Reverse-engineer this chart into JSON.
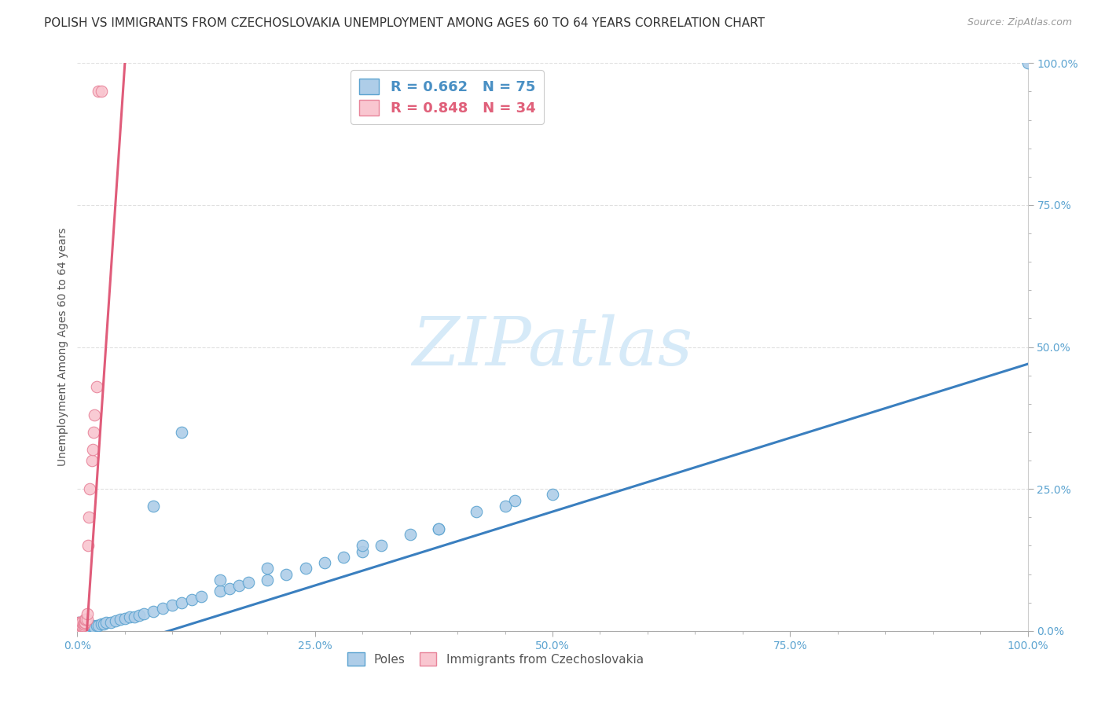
{
  "title": "POLISH VS IMMIGRANTS FROM CZECHOSLOVAKIA UNEMPLOYMENT AMONG AGES 60 TO 64 YEARS CORRELATION CHART",
  "source": "Source: ZipAtlas.com",
  "ylabel": "Unemployment Among Ages 60 to 64 years",
  "poles_label": "Poles",
  "czecho_label": "Immigrants from Czechoslovakia",
  "blue_dot_facecolor": "#aecde8",
  "blue_dot_edgecolor": "#5ba3d0",
  "pink_dot_facecolor": "#f9c6d0",
  "pink_dot_edgecolor": "#e8849a",
  "blue_line_color": "#3a7fbf",
  "pink_line_color": "#e05c7a",
  "axis_tick_color": "#5ba3d0",
  "ylabel_color": "#555555",
  "title_color": "#333333",
  "source_color": "#999999",
  "grid_color": "#e0e0e0",
  "background_color": "#ffffff",
  "watermark_color": "#d6eaf8",
  "legend_r_blue_color": "#4a90c4",
  "legend_r_pink_color": "#e0607a",
  "legend_n_blue_color": "#4a90c4",
  "legend_n_pink_color": "#e0607a",
  "legend_entry1": "R = 0.662   N = 75",
  "legend_entry2": "R = 0.848   N = 34",
  "xlim": [
    0.0,
    1.0
  ],
  "ylim": [
    0.0,
    1.0
  ],
  "blue_reg": [
    -0.05,
    0.52
  ],
  "pink_reg": [
    -0.25,
    25.0
  ],
  "poles_x": [
    0.001,
    0.001,
    0.001,
    0.001,
    0.001,
    0.001,
    0.001,
    0.001,
    0.002,
    0.002,
    0.002,
    0.002,
    0.003,
    0.003,
    0.003,
    0.004,
    0.004,
    0.005,
    0.005,
    0.006,
    0.006,
    0.007,
    0.008,
    0.009,
    0.01,
    0.01,
    0.011,
    0.012,
    0.013,
    0.015,
    0.016,
    0.018,
    0.02,
    0.022,
    0.025,
    0.028,
    0.03,
    0.035,
    0.04,
    0.045,
    0.05,
    0.055,
    0.06,
    0.065,
    0.07,
    0.08,
    0.09,
    0.1,
    0.11,
    0.12,
    0.13,
    0.15,
    0.16,
    0.17,
    0.18,
    0.2,
    0.22,
    0.24,
    0.26,
    0.28,
    0.3,
    0.32,
    0.35,
    0.38,
    0.42,
    0.46,
    0.5,
    0.45,
    0.38,
    0.3,
    0.2,
    0.15,
    0.11,
    0.08,
    1.0
  ],
  "poles_y": [
    0.005,
    0.005,
    0.007,
    0.007,
    0.008,
    0.01,
    0.012,
    0.015,
    0.005,
    0.007,
    0.01,
    0.012,
    0.005,
    0.008,
    0.01,
    0.005,
    0.008,
    0.005,
    0.008,
    0.005,
    0.01,
    0.005,
    0.007,
    0.005,
    0.007,
    0.01,
    0.005,
    0.008,
    0.005,
    0.008,
    0.01,
    0.007,
    0.01,
    0.01,
    0.012,
    0.012,
    0.015,
    0.015,
    0.018,
    0.02,
    0.022,
    0.025,
    0.025,
    0.028,
    0.03,
    0.035,
    0.04,
    0.045,
    0.05,
    0.055,
    0.06,
    0.07,
    0.075,
    0.08,
    0.085,
    0.09,
    0.1,
    0.11,
    0.12,
    0.13,
    0.14,
    0.15,
    0.17,
    0.18,
    0.21,
    0.23,
    0.24,
    0.22,
    0.18,
    0.15,
    0.11,
    0.09,
    0.35,
    0.22,
    1.0
  ],
  "czecho_x": [
    0.001,
    0.001,
    0.001,
    0.001,
    0.002,
    0.002,
    0.002,
    0.003,
    0.003,
    0.003,
    0.004,
    0.004,
    0.005,
    0.005,
    0.005,
    0.006,
    0.006,
    0.007,
    0.007,
    0.008,
    0.008,
    0.009,
    0.01,
    0.01,
    0.011,
    0.012,
    0.013,
    0.015,
    0.016,
    0.017,
    0.018,
    0.02,
    0.022,
    0.025
  ],
  "czecho_y": [
    0.005,
    0.008,
    0.01,
    0.015,
    0.005,
    0.008,
    0.012,
    0.005,
    0.01,
    0.015,
    0.005,
    0.01,
    0.008,
    0.01,
    0.015,
    0.01,
    0.012,
    0.012,
    0.015,
    0.015,
    0.02,
    0.02,
    0.02,
    0.03,
    0.15,
    0.2,
    0.25,
    0.3,
    0.32,
    0.35,
    0.38,
    0.43,
    0.95,
    0.95
  ]
}
